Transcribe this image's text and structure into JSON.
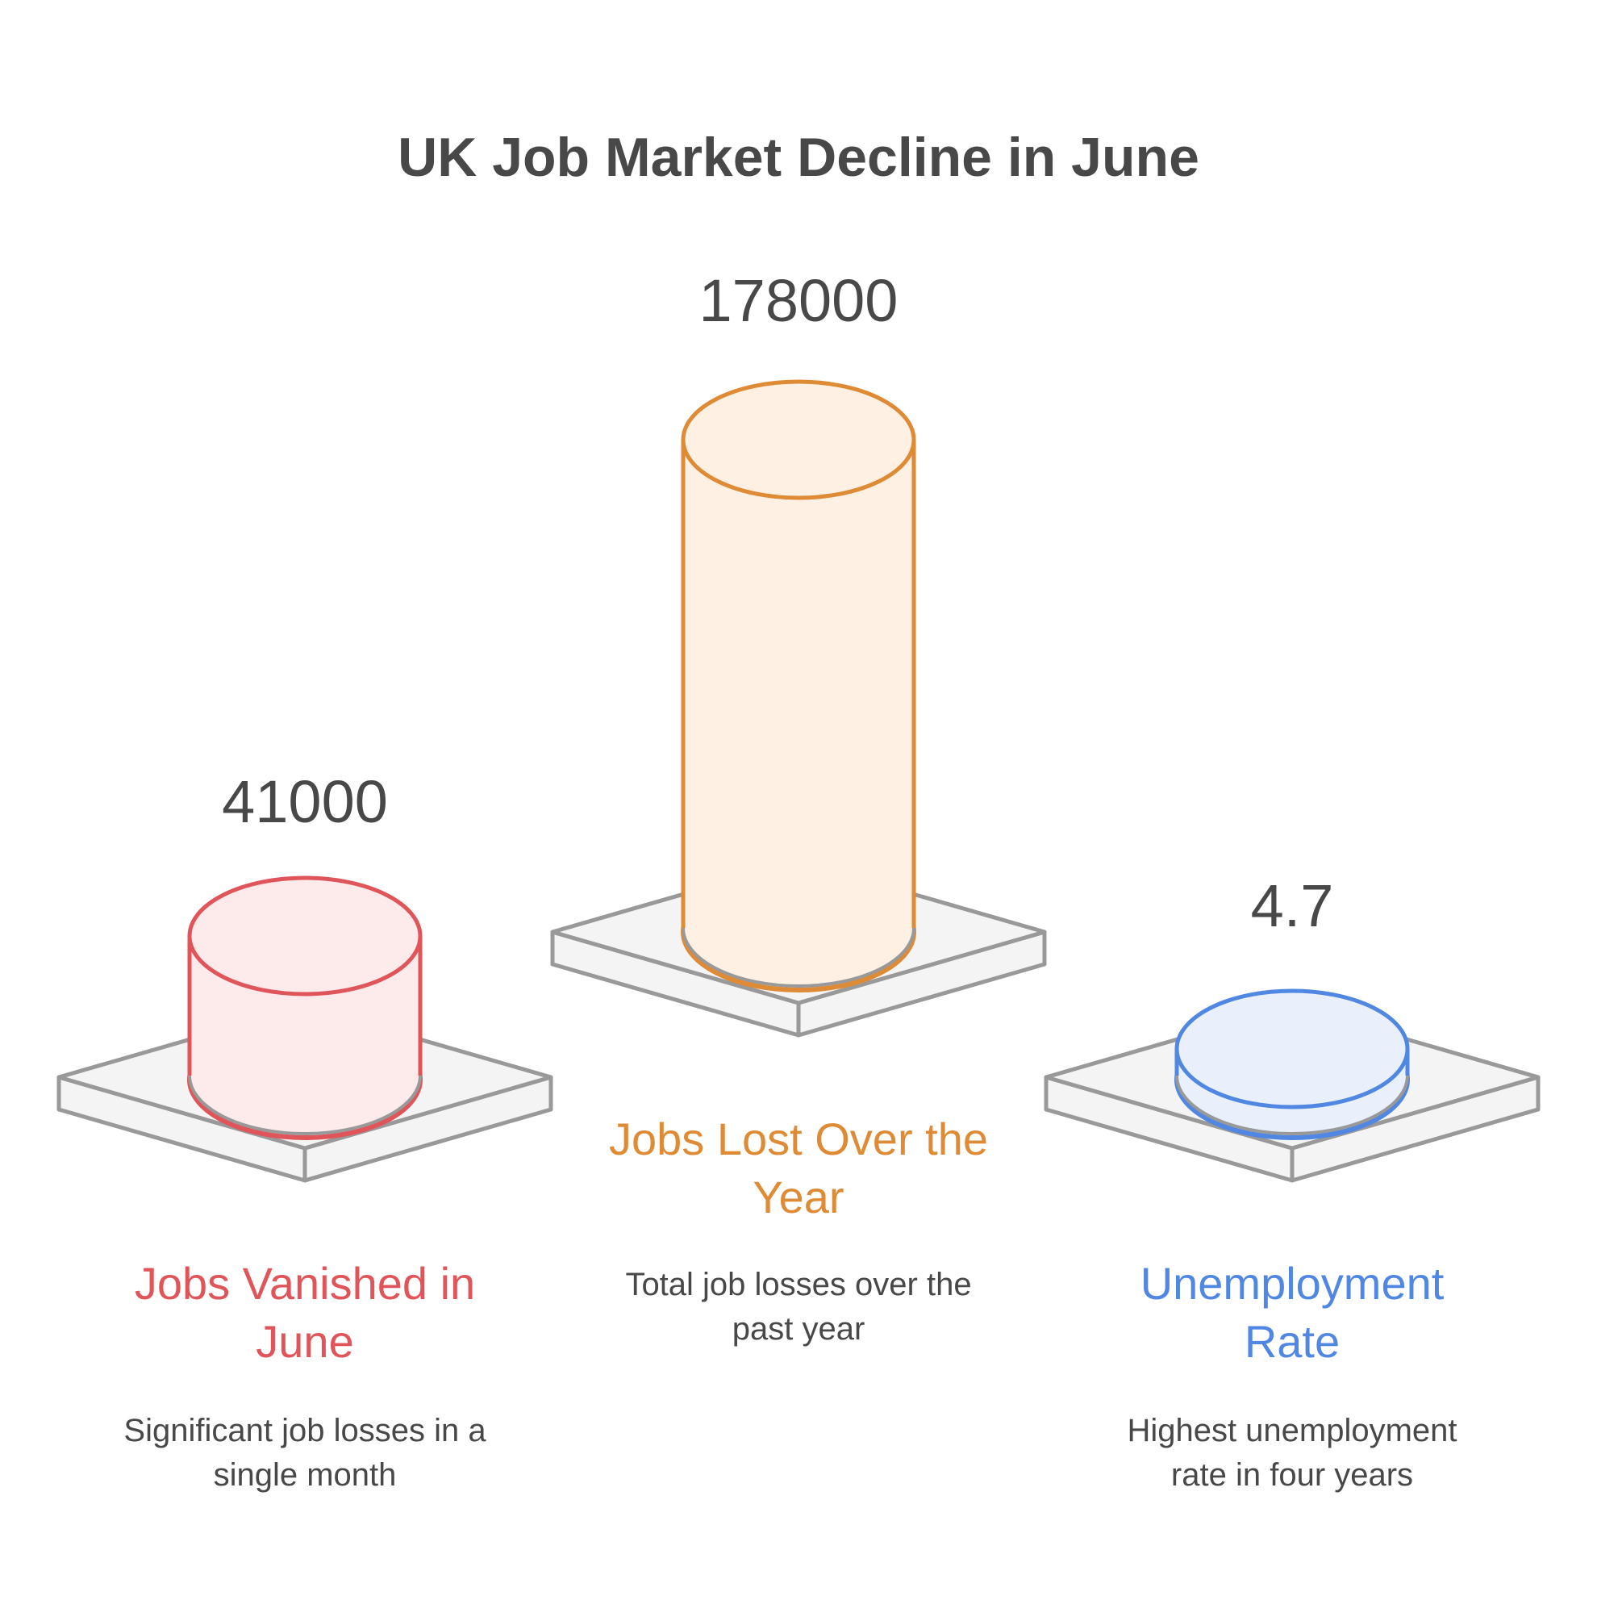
{
  "chart_data": {
    "type": "bar",
    "title": "UK Job Market Decline in June",
    "categories": [
      "Jobs Vanished in June",
      "Jobs Lost Over the Year",
      "Unemployment Rate"
    ],
    "values": [
      41000,
      178000,
      4.7
    ],
    "value_labels": [
      "41000",
      "178000",
      "4.7"
    ],
    "descriptions": [
      "Significant job losses in a single month",
      "Total job losses over the past year",
      "Highest unemployment rate in four years"
    ],
    "colors": {
      "stroke": [
        "#e0555a",
        "#df8a34",
        "#5087e2"
      ],
      "fill": [
        "#fdeaea",
        "#fef0e2",
        "#e9f0fb"
      ],
      "title": "#484848",
      "text": "#484848",
      "platform_stroke": "#999999",
      "platform_fill": "#f4f4f4"
    }
  }
}
